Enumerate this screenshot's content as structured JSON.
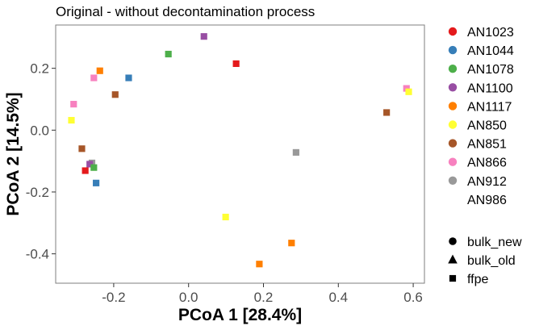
{
  "chart_data": {
    "type": "scatter",
    "title": "Original - without decontamination process",
    "xlabel": "PCoA 1 [28.4%]",
    "ylabel": "PCoA 2 [14.5%]",
    "xlim": [
      -0.355,
      0.63
    ],
    "ylim": [
      -0.495,
      0.34
    ],
    "x_ticks": [
      -0.2,
      0.0,
      0.2,
      0.4,
      0.6
    ],
    "x_tick_labels": [
      "-0.2",
      "0.0",
      "0.2",
      "0.4",
      "0.6"
    ],
    "y_ticks": [
      0.2,
      0.0,
      -0.2,
      -0.4
    ],
    "y_tick_labels": [
      "0.2",
      "0.0",
      "-0.2",
      "-0.4"
    ],
    "grid": false,
    "legend_position": "right",
    "color_legend": [
      {
        "name": "AN1023",
        "color": "#E41A1C"
      },
      {
        "name": "AN1044",
        "color": "#377EB8"
      },
      {
        "name": "AN1078",
        "color": "#4DAF4A"
      },
      {
        "name": "AN1100",
        "color": "#984EA3"
      },
      {
        "name": "AN1117",
        "color": "#FF7F00"
      },
      {
        "name": "AN850",
        "color": "#FFFF33"
      },
      {
        "name": "AN851",
        "color": "#A65628"
      },
      {
        "name": "AN866",
        "color": "#F781BF"
      },
      {
        "name": "AN912",
        "color": "#999999"
      },
      {
        "name": "AN986",
        "color": "#FFFFFF"
      }
    ],
    "shape_legend": [
      {
        "name": "bulk_new",
        "shape": "circle"
      },
      {
        "name": "bulk_old",
        "shape": "triangle"
      },
      {
        "name": "ffpe",
        "shape": "square"
      }
    ],
    "points": [
      {
        "sample": "AN1023",
        "type": "bulk_new",
        "x": 0.127,
        "y": 0.215
      },
      {
        "sample": "AN1044",
        "type": "bulk_new",
        "x": -0.16,
        "y": 0.169
      },
      {
        "sample": "AN1078",
        "type": "bulk_new",
        "x": -0.054,
        "y": 0.246
      },
      {
        "sample": "AN1100",
        "type": "bulk_new",
        "x": 0.041,
        "y": 0.303
      },
      {
        "sample": "AN1117",
        "type": "bulk_new",
        "x": -0.237,
        "y": 0.192
      },
      {
        "sample": "AN850",
        "type": "bulk_new",
        "x": 0.099,
        "y": -0.281
      },
      {
        "sample": "AN851",
        "type": "bulk_new",
        "x": -0.196,
        "y": 0.115
      },
      {
        "sample": "AN866",
        "type": "bulk_new",
        "x": -0.253,
        "y": 0.169
      },
      {
        "sample": "AN912",
        "type": "bulk_new",
        "x": 0.287,
        "y": -0.072
      },
      {
        "sample": "AN866",
        "type": "bulk_old",
        "x": 0.582,
        "y": 0.135
      },
      {
        "sample": "AN850",
        "type": "bulk_old",
        "x": 0.588,
        "y": 0.124
      },
      {
        "sample": "AN851",
        "type": "bulk_old",
        "x": 0.529,
        "y": 0.057
      },
      {
        "sample": "AN1117",
        "type": "bulk_old",
        "x": 0.275,
        "y": -0.365
      },
      {
        "sample": "AN850",
        "type": "ffpe",
        "x": -0.313,
        "y": 0.032
      },
      {
        "sample": "AN866",
        "type": "ffpe",
        "x": -0.307,
        "y": 0.084
      },
      {
        "sample": "AN851",
        "type": "ffpe",
        "x": -0.285,
        "y": -0.06
      },
      {
        "sample": "AN912",
        "type": "ffpe",
        "x": -0.258,
        "y": -0.106
      },
      {
        "sample": "AN1100",
        "type": "ffpe",
        "x": -0.264,
        "y": -0.11
      },
      {
        "sample": "AN1078",
        "type": "ffpe",
        "x": -0.253,
        "y": -0.121
      },
      {
        "sample": "AN1023",
        "type": "ffpe",
        "x": -0.276,
        "y": -0.131
      },
      {
        "sample": "AN1044",
        "type": "ffpe",
        "x": -0.247,
        "y": -0.171
      },
      {
        "sample": "AN1117",
        "type": "ffpe",
        "x": 0.189,
        "y": -0.433
      }
    ]
  }
}
